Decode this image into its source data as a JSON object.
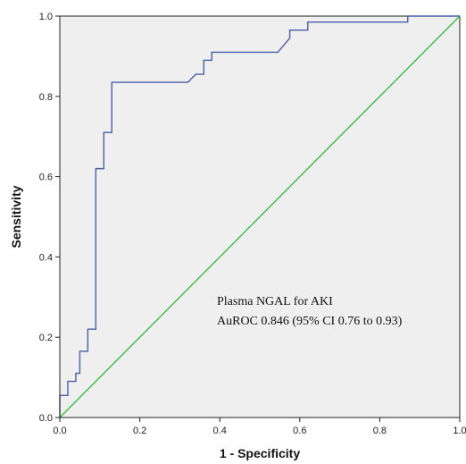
{
  "chart_data": {
    "type": "line",
    "xlabel": "1 - Specificity",
    "ylabel": "Sensitivity",
    "xlim": [
      0,
      1
    ],
    "ylim": [
      0,
      1
    ],
    "grid": false,
    "x_ticks": [
      "0.0",
      "0.2",
      "0.4",
      "0.6",
      "0.8",
      "1.0"
    ],
    "y_ticks": [
      "0.0",
      "0.2",
      "0.4",
      "0.6",
      "0.8",
      "1.0"
    ],
    "annotation": {
      "line1": "Plasma NGAL for AKI",
      "line2": "AuROC 0.846 (95% CI 0.76 to 0.93)"
    },
    "colors": {
      "plot_background": "#efefef",
      "roc_curve": "#4a5ea8",
      "reference_line": "#3dbb4a",
      "axis": "#222222"
    },
    "series": [
      {
        "points": [
          [
            0.0,
            0.0
          ],
          [
            0.0,
            0.055
          ],
          [
            0.02,
            0.055
          ],
          [
            0.02,
            0.09
          ],
          [
            0.04,
            0.09
          ],
          [
            0.04,
            0.11
          ],
          [
            0.05,
            0.11
          ],
          [
            0.05,
            0.165
          ],
          [
            0.07,
            0.165
          ],
          [
            0.07,
            0.22
          ],
          [
            0.09,
            0.22
          ],
          [
            0.09,
            0.62
          ],
          [
            0.11,
            0.62
          ],
          [
            0.11,
            0.71
          ],
          [
            0.13,
            0.71
          ],
          [
            0.13,
            0.835
          ],
          [
            0.32,
            0.835
          ],
          [
            0.34,
            0.855
          ],
          [
            0.36,
            0.855
          ],
          [
            0.36,
            0.89
          ],
          [
            0.38,
            0.89
          ],
          [
            0.38,
            0.91
          ],
          [
            0.545,
            0.91
          ],
          [
            0.575,
            0.945
          ],
          [
            0.575,
            0.965
          ],
          [
            0.62,
            0.965
          ],
          [
            0.62,
            0.985
          ],
          [
            0.87,
            0.985
          ],
          [
            0.87,
            1.0
          ],
          [
            1.0,
            1.0
          ]
        ]
      },
      {
        "points": [
          [
            0.0,
            0.0
          ],
          [
            1.0,
            1.0
          ]
        ]
      }
    ]
  }
}
